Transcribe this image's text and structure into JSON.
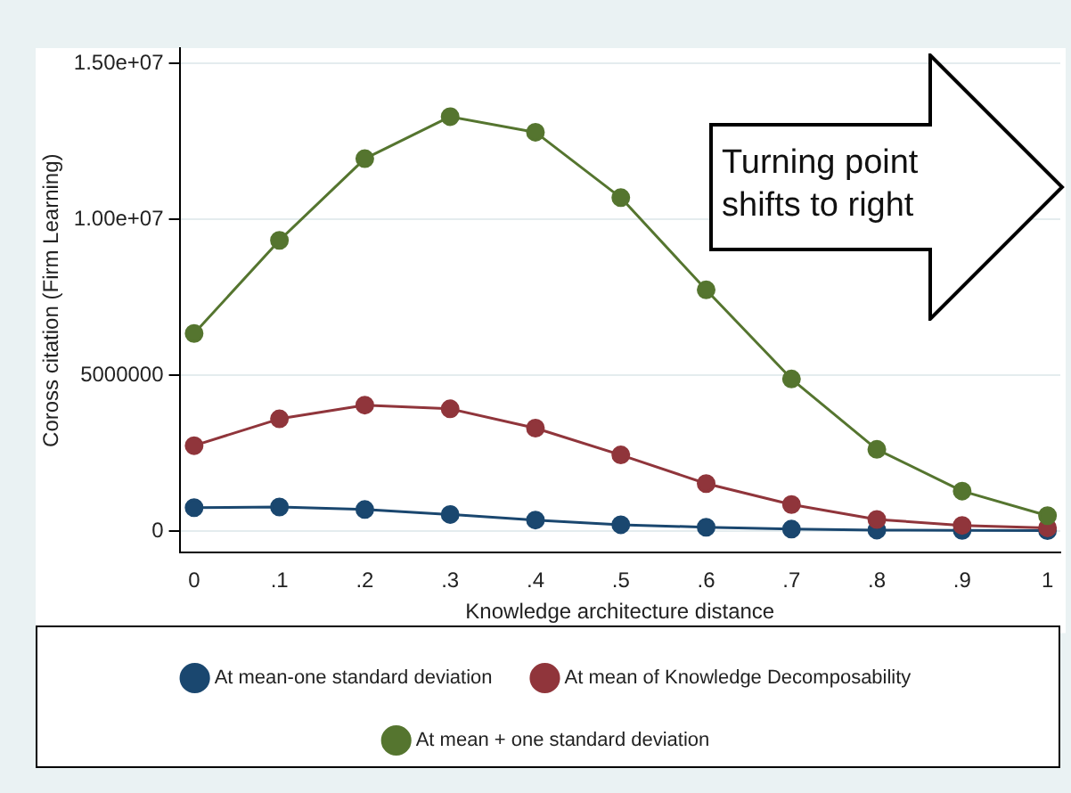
{
  "chart_data": {
    "type": "line",
    "xlabel": "Knowledge architecture distance",
    "ylabel": "Coross citation (Firm Learning)",
    "x": [
      0,
      0.1,
      0.2,
      0.3,
      0.4,
      0.5,
      0.6,
      0.7,
      0.8,
      0.9,
      1
    ],
    "series": [
      {
        "name": "At mean-one standard deviation",
        "color": "#1a476f",
        "values": [
          750000,
          770000,
          690000,
          530000,
          350000,
          200000,
          120000,
          60000,
          30000,
          20000,
          10000
        ]
      },
      {
        "name": "At mean of Knowledge Decomposability",
        "color": "#90353b",
        "values": [
          2740000,
          3600000,
          4040000,
          3920000,
          3300000,
          2440000,
          1520000,
          850000,
          370000,
          180000,
          100000
        ]
      },
      {
        "name": "At mean + one standard deviation",
        "color": "#55752f",
        "values": [
          6340000,
          9330000,
          11950000,
          13300000,
          12800000,
          10700000,
          7740000,
          4880000,
          2620000,
          1280000,
          490000
        ]
      }
    ],
    "xlim": [
      -0.017,
      1.015
    ],
    "xticks": [
      {
        "value": 0,
        "label": "0"
      },
      {
        "value": 0.1,
        "label": ".1"
      },
      {
        "value": 0.2,
        "label": ".2"
      },
      {
        "value": 0.3,
        "label": ".3"
      },
      {
        "value": 0.4,
        "label": ".4"
      },
      {
        "value": 0.5,
        "label": ".5"
      },
      {
        "value": 0.6,
        "label": ".6"
      },
      {
        "value": 0.7,
        "label": ".7"
      },
      {
        "value": 0.8,
        "label": ".8"
      },
      {
        "value": 0.9,
        "label": ".9"
      },
      {
        "value": 1,
        "label": "1"
      }
    ],
    "ylim": [
      -700000,
      15500000
    ],
    "yticks": [
      0,
      5000000,
      {
        "value": 10000000,
        "label": "1.00e+07"
      },
      {
        "value": 15000000,
        "label": "1.50e+07"
      }
    ],
    "grid": "y",
    "legend": "bottom",
    "marker": "circle",
    "line_style": "solid",
    "annotations": [
      "Turning point shifts to right"
    ]
  }
}
